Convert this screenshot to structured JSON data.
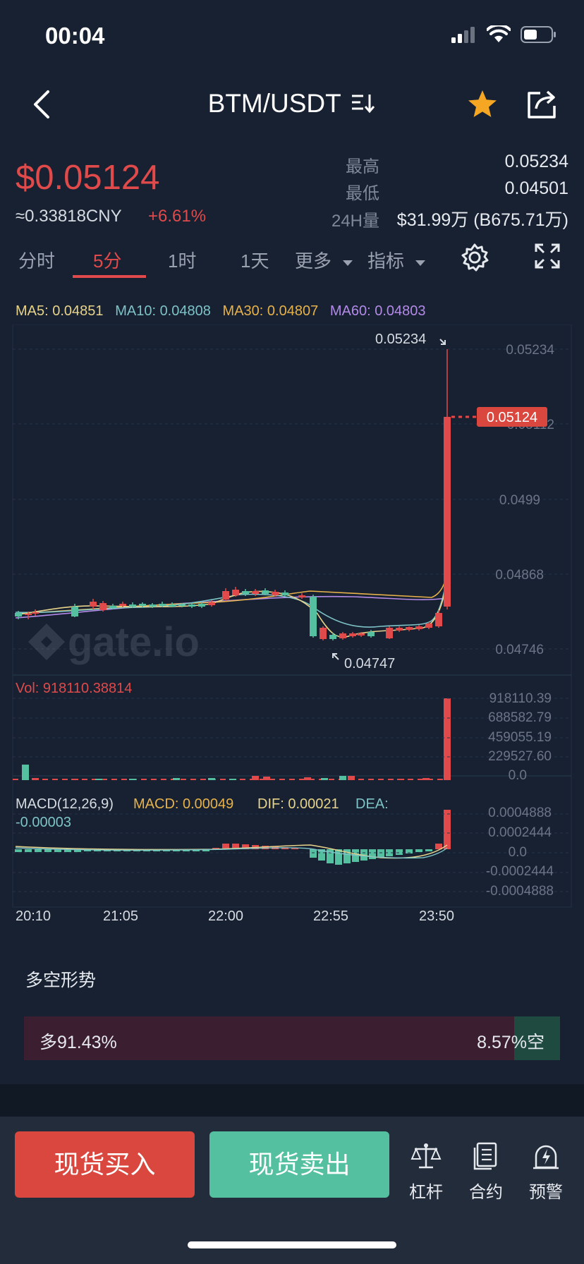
{
  "status": {
    "time": "00:04"
  },
  "nav": {
    "pair": "BTM/USDT"
  },
  "ticker": {
    "price": "$0.05124",
    "cny": "≈0.33818CNY",
    "change": "+6.61%",
    "high_label": "最高",
    "high_value": "0.05234",
    "low_label": "最低",
    "low_value": "0.04501",
    "vol_label": "24H量",
    "vol_value": "$31.99万 (B675.71万)"
  },
  "tabs": [
    "分时",
    "5分",
    "1时",
    "1天",
    "更多",
    "指标"
  ],
  "active_tab": "5分",
  "ma_legend": {
    "ma5": "MA5: 0.04851",
    "ma10": "MA10: 0.04808",
    "ma30": "MA30: 0.04807",
    "ma60": "MA60: 0.04803"
  },
  "chart_data": {
    "type": "candlestick",
    "price_axis": [
      "0.05234",
      "0.05112",
      "0.0499",
      "0.04868",
      "0.04746"
    ],
    "current_price": "0.05124",
    "max_marker": "0.05234",
    "min_marker": "0.04747",
    "volume": {
      "title": "Vol: 918110.38814",
      "axis": [
        "918110.39",
        "688582.79",
        "459055.19",
        "229527.60",
        "0.0"
      ]
    },
    "macd": {
      "title": "MACD(12,26,9)",
      "macd": "MACD: 0.00049",
      "dif": "DIF: 0.00021",
      "dea": "DEA: -0.00003",
      "axis": [
        "0.0004888",
        "0.0002444",
        "0.0",
        "-0.0002444",
        "-0.0004888"
      ]
    },
    "time_axis": [
      "20:10",
      "21:05",
      "22:00",
      "22:55",
      "23:50"
    ]
  },
  "long_short": {
    "title": "多空形势",
    "long_label": "多91.43%",
    "short_label": "8.57%空",
    "long_pct": 91.43
  },
  "bottom": {
    "buy": "现货买入",
    "sell": "现货卖出",
    "tools": [
      "杠杆",
      "合约",
      "预警"
    ]
  },
  "colors": {
    "up": "#e04a4a",
    "down": "#55c0a0",
    "bg": "#172131"
  },
  "icons": [
    "back-icon",
    "sort-icon",
    "star-icon",
    "share-icon",
    "settings-icon",
    "fullscreen-icon",
    "leverage-icon",
    "contract-icon",
    "alert-icon"
  ]
}
